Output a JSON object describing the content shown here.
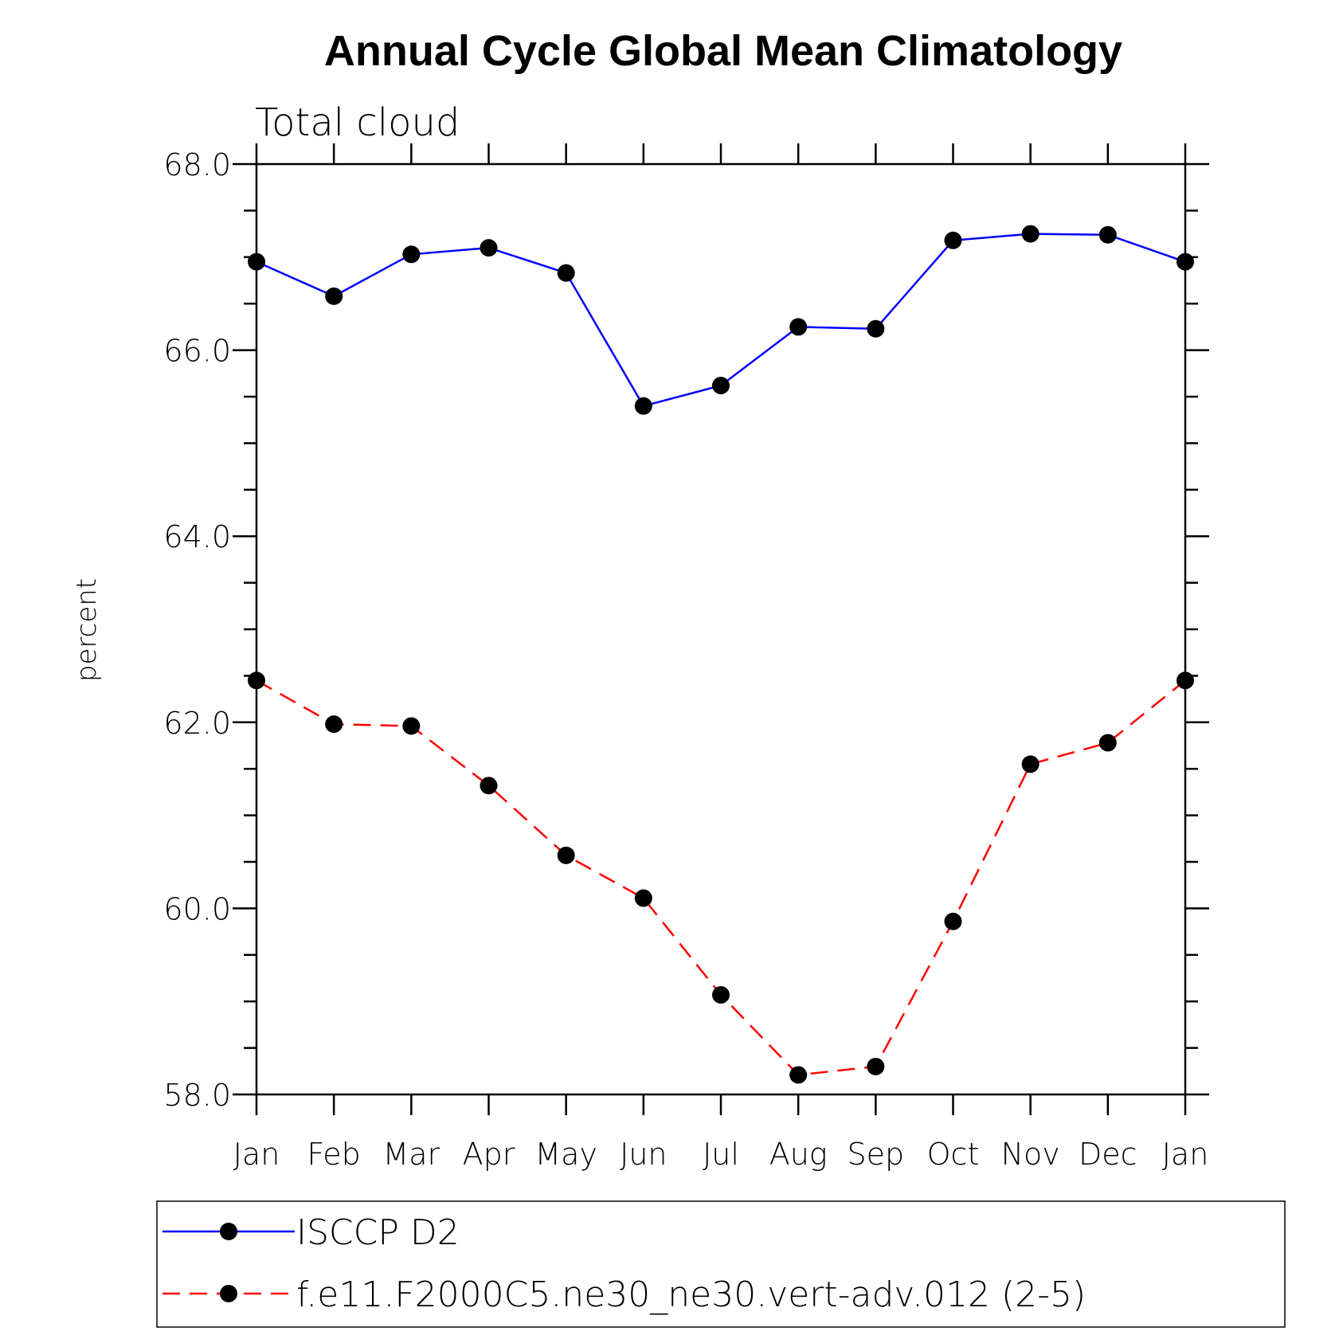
{
  "chart_data": {
    "type": "line",
    "title": "Annual Cycle Global Mean Climatology",
    "subtitle": "Total cloud",
    "xlabel": "",
    "ylabel": "percent",
    "ylim": [
      58.0,
      68.0
    ],
    "yticks": [
      "58.0",
      "60.0",
      "62.0",
      "64.0",
      "66.0",
      "68.0"
    ],
    "categories": [
      "Jan",
      "Feb",
      "Mar",
      "Apr",
      "May",
      "Jun",
      "Jul",
      "Aug",
      "Sep",
      "Oct",
      "Nov",
      "Dec",
      "Jan"
    ],
    "series": [
      {
        "name": "ISCCP D2",
        "color": "#0000ff",
        "dash": "solid",
        "values": [
          66.95,
          66.58,
          67.03,
          67.1,
          66.83,
          65.4,
          65.62,
          66.25,
          66.23,
          67.18,
          67.25,
          67.24,
          66.95
        ]
      },
      {
        "name": "f.e11.F2000C5.ne30_ne30.vert-adv.012 (2-5)",
        "color": "#ff0000",
        "dash": "dashed",
        "values": [
          62.45,
          61.98,
          61.96,
          61.32,
          60.57,
          60.11,
          59.07,
          58.21,
          58.3,
          59.86,
          61.55,
          61.78,
          62.45
        ]
      }
    ],
    "legend_position": "bottom"
  }
}
